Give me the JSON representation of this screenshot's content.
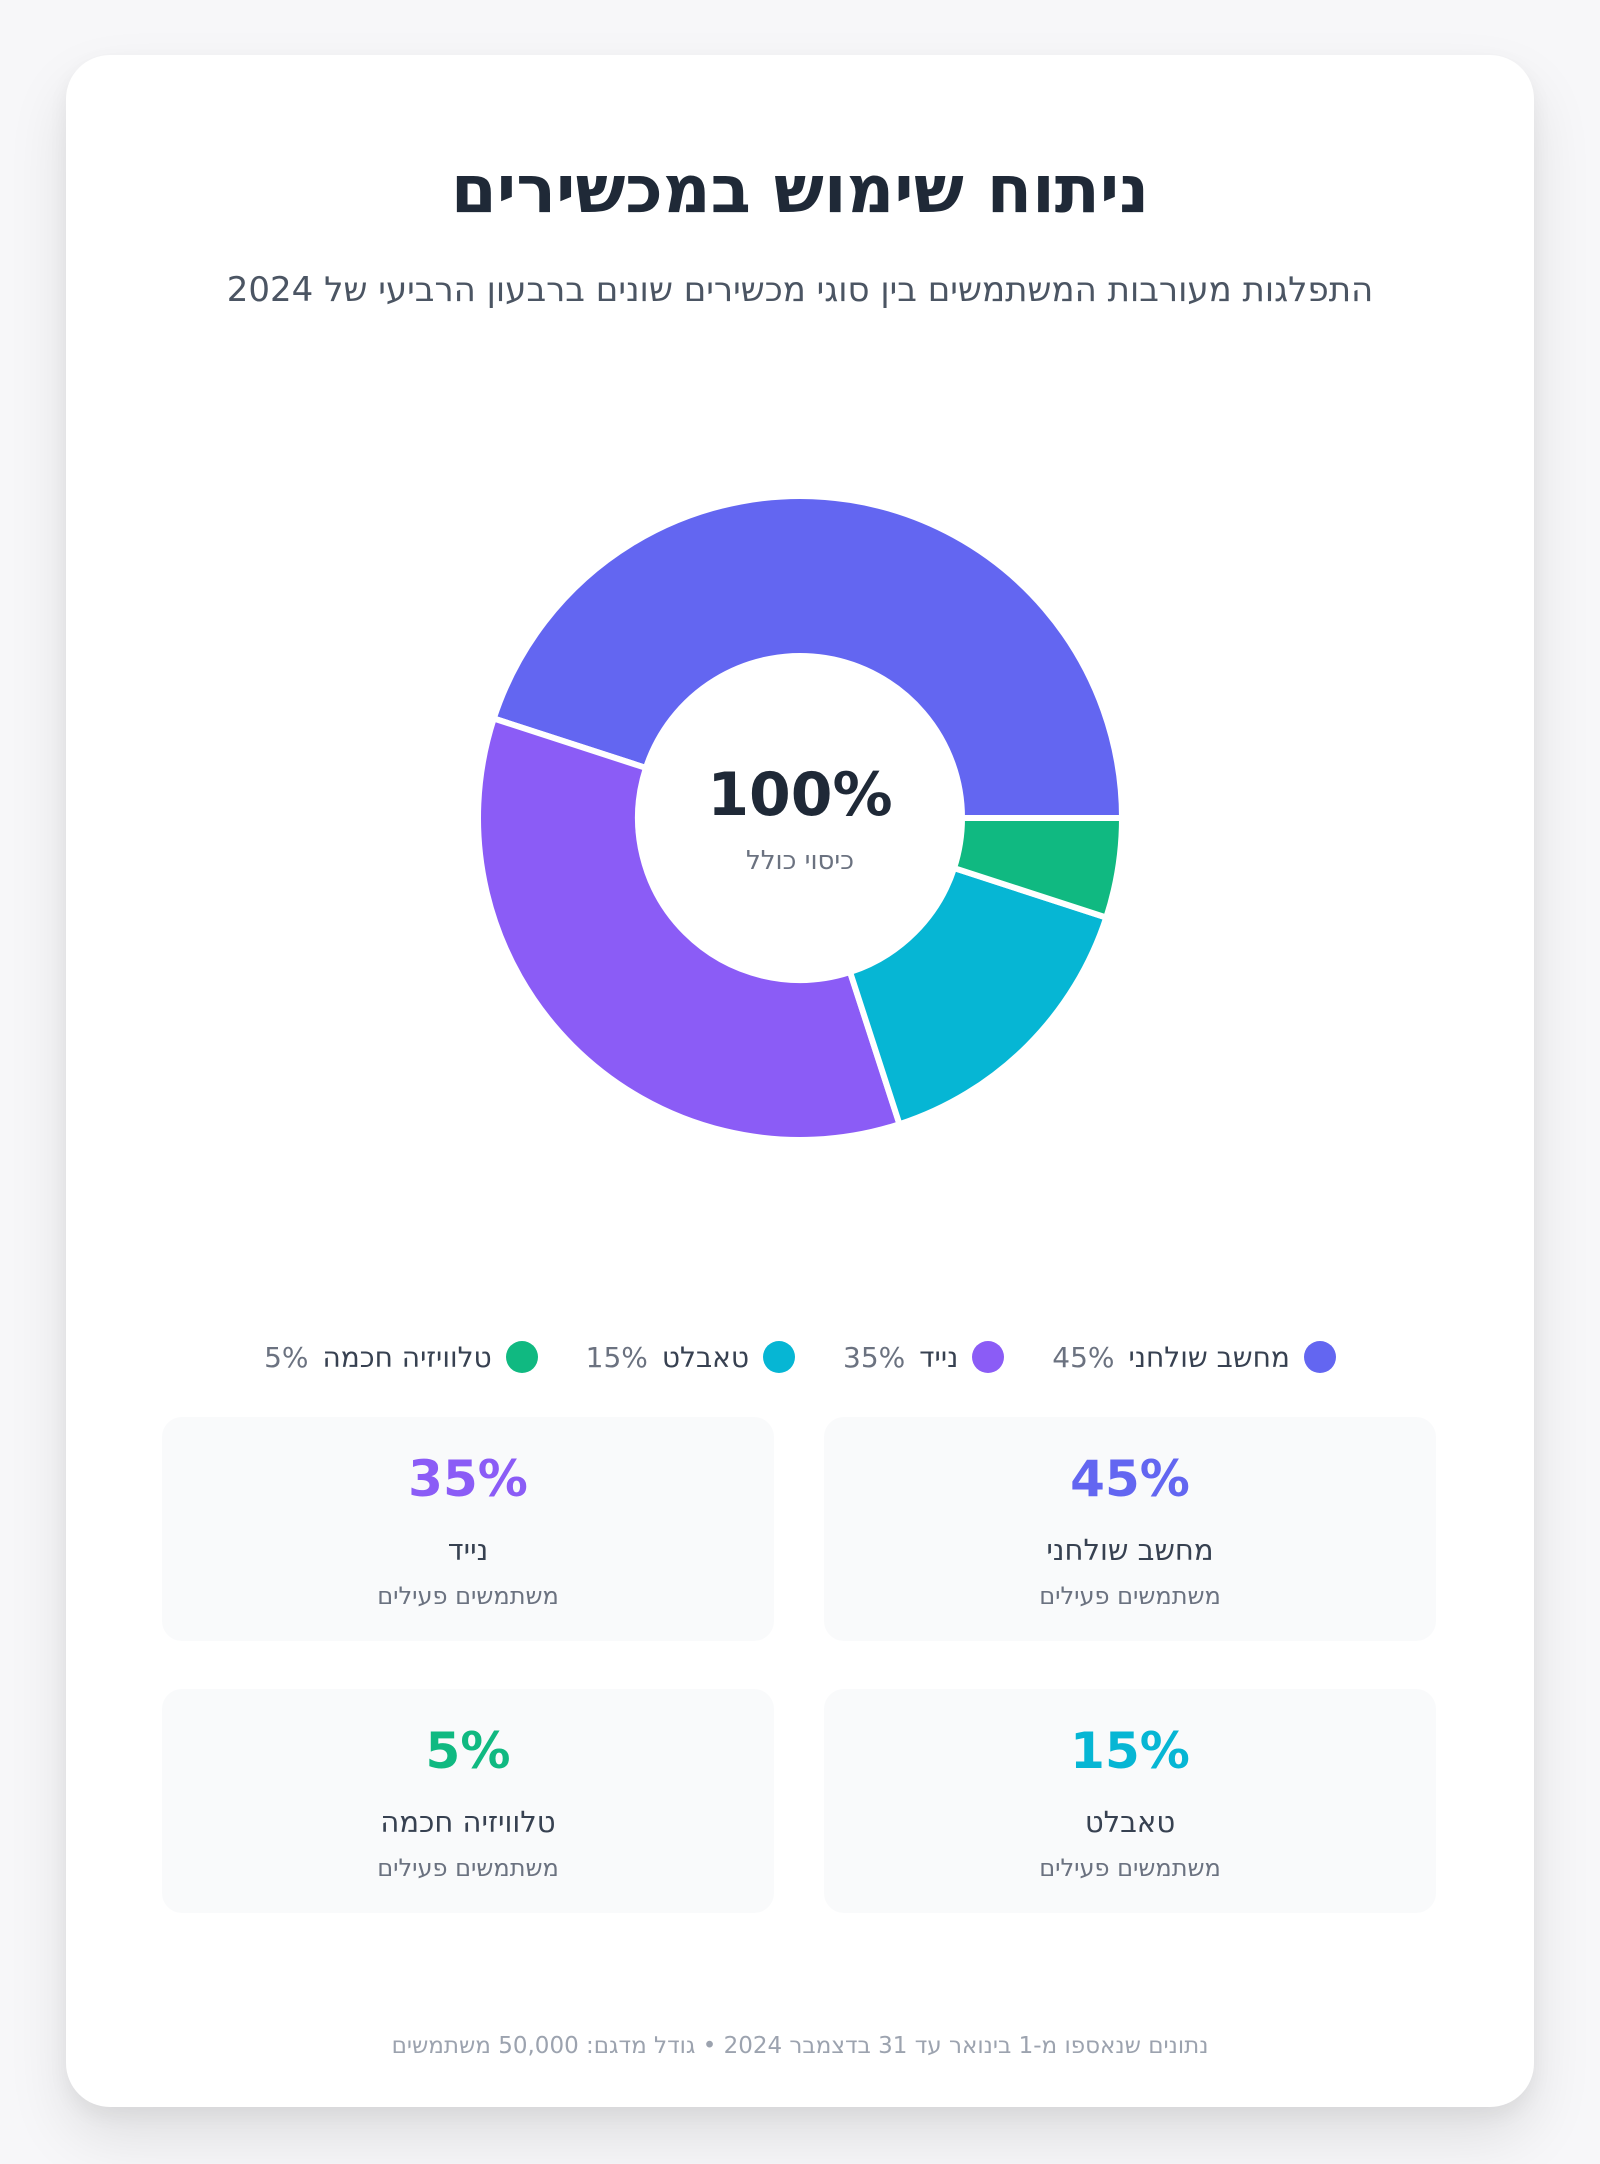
{
  "header": {
    "title": "ניתוח שימוש במכשירים",
    "subtitle": "התפלגות מעורבות המשתמשים בין סוגי מכשירים שונים ברבעון הרביעי של 2024"
  },
  "chart_data": {
    "type": "pie",
    "categories": [
      "מחשב שולחני",
      "נייד",
      "טאבלט",
      "טלוויזיה חכמה"
    ],
    "values": [
      45,
      35,
      15,
      5
    ],
    "value_labels": [
      "45%",
      "35%",
      "15%",
      "5%"
    ],
    "colors": [
      "#6366f1",
      "#8b5cf6",
      "#06b6d4",
      "#10b981"
    ],
    "center_value": "100%",
    "center_label": "כיסוי כולל",
    "legend_placement": "bottom"
  },
  "stats": [
    {
      "value": "45%",
      "name": "מחשב שולחני",
      "desc": "משתמשים פעילים",
      "color": "#6366f1"
    },
    {
      "value": "35%",
      "name": "נייד",
      "desc": "משתמשים פעילים",
      "color": "#8b5cf6"
    },
    {
      "value": "15%",
      "name": "טאבלט",
      "desc": "משתמשים פעילים",
      "color": "#06b6d4"
    },
    {
      "value": "5%",
      "name": "טלוויזיה חכמה",
      "desc": "משתמשים פעילים",
      "color": "#10b981"
    }
  ],
  "footer": {
    "text": "נתונים שנאספו מ-1 בינואר עד 31 בדצמבר 2024 • גודל מדגם: 50,000 משתמשים"
  }
}
